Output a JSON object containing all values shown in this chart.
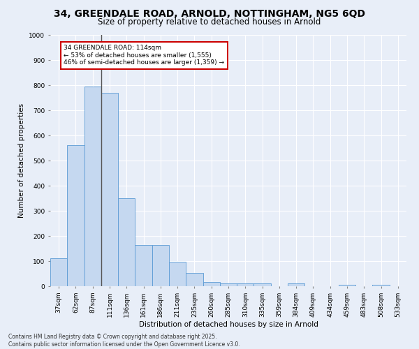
{
  "title_line1": "34, GREENDALE ROAD, ARNOLD, NOTTINGHAM, NG5 6QD",
  "title_line2": "Size of property relative to detached houses in Arnold",
  "xlabel": "Distribution of detached houses by size in Arnold",
  "ylabel": "Number of detached properties",
  "categories": [
    "37sqm",
    "62sqm",
    "87sqm",
    "111sqm",
    "136sqm",
    "161sqm",
    "186sqm",
    "211sqm",
    "235sqm",
    "260sqm",
    "285sqm",
    "310sqm",
    "335sqm",
    "359sqm",
    "384sqm",
    "409sqm",
    "434sqm",
    "459sqm",
    "483sqm",
    "508sqm",
    "533sqm"
  ],
  "values": [
    110,
    560,
    795,
    770,
    350,
    165,
    165,
    97,
    53,
    18,
    12,
    10,
    10,
    0,
    10,
    0,
    0,
    5,
    0,
    5,
    0
  ],
  "bar_color": "#c5d8f0",
  "bar_edge_color": "#5b9bd5",
  "background_color": "#e8eef8",
  "grid_color": "#ffffff",
  "annotation_text": "34 GREENDALE ROAD: 114sqm\n← 53% of detached houses are smaller (1,555)\n46% of semi-detached houses are larger (1,359) →",
  "vline_x_index": 3,
  "vline_color": "#555555",
  "annotation_box_color": "#ffffff",
  "annotation_box_edge_color": "#cc0000",
  "ylim": [
    0,
    1000
  ],
  "yticks": [
    0,
    100,
    200,
    300,
    400,
    500,
    600,
    700,
    800,
    900,
    1000
  ],
  "footer_line1": "Contains HM Land Registry data © Crown copyright and database right 2025.",
  "footer_line2": "Contains public sector information licensed under the Open Government Licence v3.0.",
  "title_fontsize": 10,
  "subtitle_fontsize": 8.5,
  "axis_label_fontsize": 7.5,
  "tick_fontsize": 6.5,
  "annotation_fontsize": 6.5,
  "footer_fontsize": 5.5
}
